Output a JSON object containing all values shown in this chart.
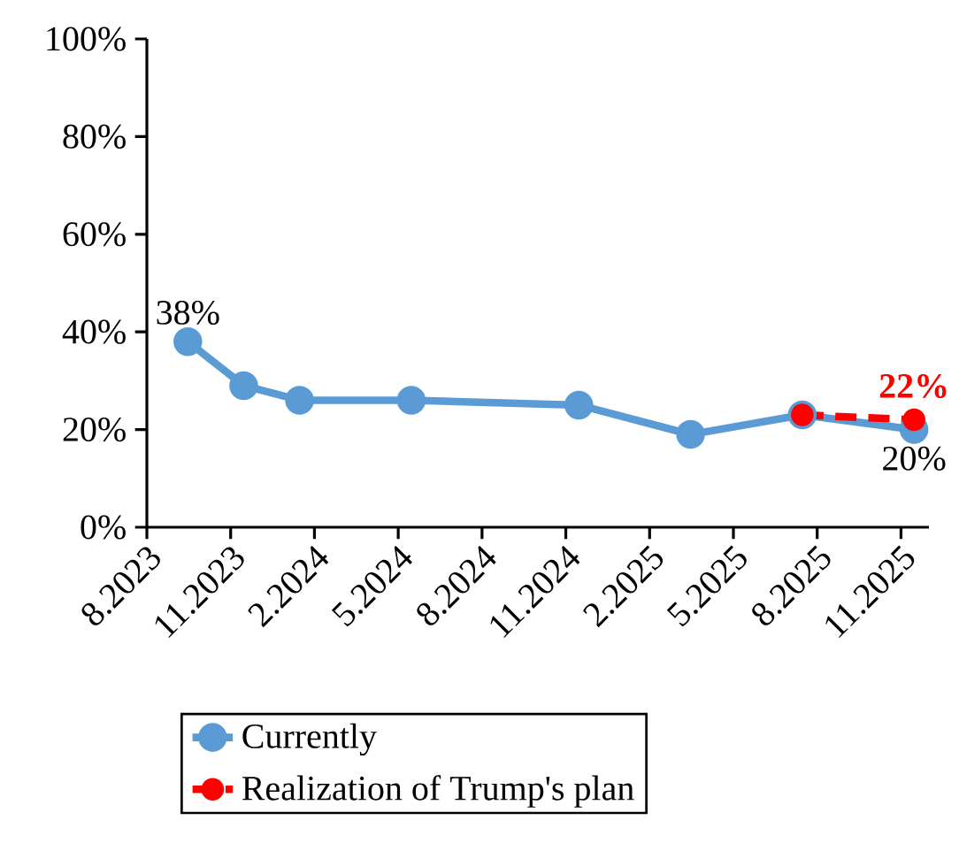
{
  "chart_data": {
    "type": "line",
    "x": [
      "2023-09-15",
      "2023-11-15",
      "2024-01-15",
      "2024-05-15",
      "2024-11-15",
      "2025-03-15",
      "2025-07-15",
      "2025-11-15"
    ],
    "series": [
      {
        "name": "Currently",
        "color": "#5b9bd5",
        "values": [
          38,
          29,
          26,
          26,
          25,
          19,
          23,
          20
        ],
        "value_labels": [
          "38%",
          null,
          null,
          null,
          null,
          null,
          null,
          "20%"
        ],
        "line_style": "solid"
      },
      {
        "name": "Realization of Trump's plan",
        "color": "#ff0000",
        "x": [
          "2025-07-15",
          "2025-11-15"
        ],
        "values": [
          23,
          22
        ],
        "value_labels": [
          null,
          "22%"
        ],
        "line_style": "dashed"
      }
    ],
    "xlim": [
      "2023-08",
      "2025-12"
    ],
    "xticks": [
      {
        "value": "2023-08",
        "label": "8.2023"
      },
      {
        "value": "2023-11",
        "label": "11.2023"
      },
      {
        "value": "2024-02",
        "label": "2.2024"
      },
      {
        "value": "2024-05",
        "label": "5.2024"
      },
      {
        "value": "2024-08",
        "label": "8.2024"
      },
      {
        "value": "2024-11",
        "label": "11.2024"
      },
      {
        "value": "2025-02",
        "label": "2.2025"
      },
      {
        "value": "2025-05",
        "label": "5.2025"
      },
      {
        "value": "2025-08",
        "label": "8.2025"
      },
      {
        "value": "2025-11",
        "label": "11.2025"
      }
    ],
    "ylim": [
      0,
      100
    ],
    "yticks": [
      {
        "value": 0,
        "label": "0%"
      },
      {
        "value": 20,
        "label": "20%"
      },
      {
        "value": 40,
        "label": "40%"
      },
      {
        "value": 60,
        "label": "60%"
      },
      {
        "value": 80,
        "label": "80%"
      },
      {
        "value": 100,
        "label": "100%"
      }
    ],
    "marker": "circle",
    "legend": "bottom",
    "grid": false
  }
}
